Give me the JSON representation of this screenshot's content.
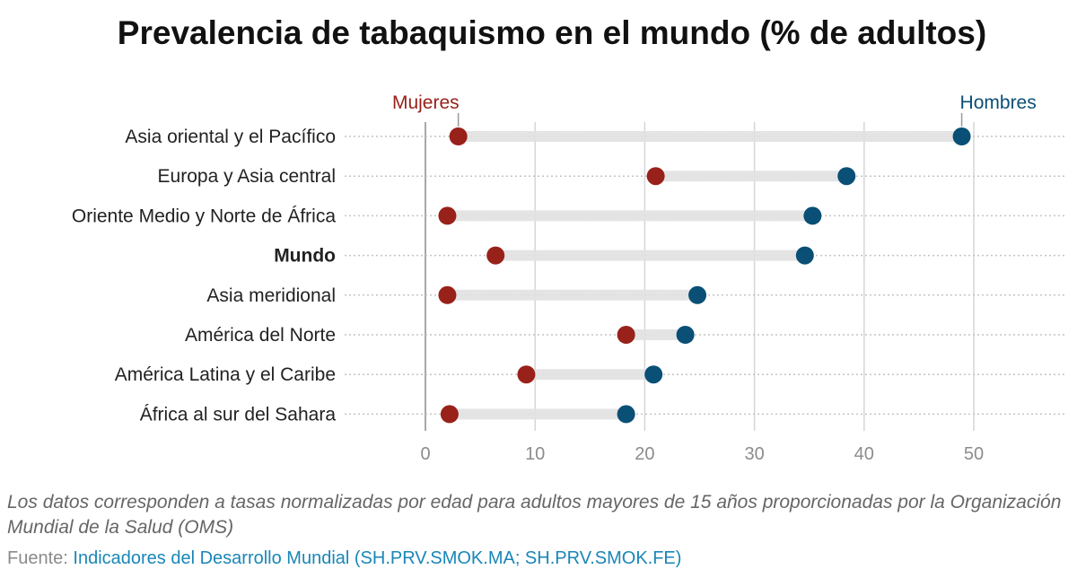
{
  "title": "Prevalencia de tabaquismo en el mundo (% de adultos)",
  "note": "Los datos corresponden a tasas normalizadas por edad para adultos mayores de 15 años proporcionadas por la Organización Mundial de la Salud (OMS)",
  "source": {
    "label": "Fuente: ",
    "link_text": "Indicadores del Desarrollo Mundial (SH.PRV.SMOK.MA; SH.PRV.SMOK.FE)"
  },
  "colors": {
    "women": "#98211a",
    "men": "#0a4f75",
    "link": "#1a86b7"
  },
  "chart_data": {
    "type": "dumbbell",
    "title": "Prevalencia de tabaquismo en el mundo (% de adultos)",
    "xlabel": "",
    "ylabel": "",
    "xlim": [
      0,
      55
    ],
    "xticks": [
      0,
      10,
      20,
      30,
      40,
      50
    ],
    "grid": true,
    "legend": "top (direct labels)",
    "categories": [
      "Asia oriental y el Pacífico",
      "Europa y Asia central",
      "Oriente Medio y Norte de África",
      "Mundo",
      "Asia meridional",
      "América del Norte",
      "América Latina y el Caribe",
      "África al sur del Sahara"
    ],
    "bold_categories": [
      "Mundo"
    ],
    "series": [
      {
        "name": "Mujeres",
        "color": "#98211a",
        "values": [
          3.0,
          21.0,
          2.0,
          6.4,
          2.0,
          18.3,
          9.2,
          2.2
        ]
      },
      {
        "name": "Hombres",
        "color": "#0a4f75",
        "values": [
          48.9,
          38.4,
          35.3,
          34.6,
          24.8,
          23.7,
          20.8,
          18.3
        ]
      }
    ]
  }
}
